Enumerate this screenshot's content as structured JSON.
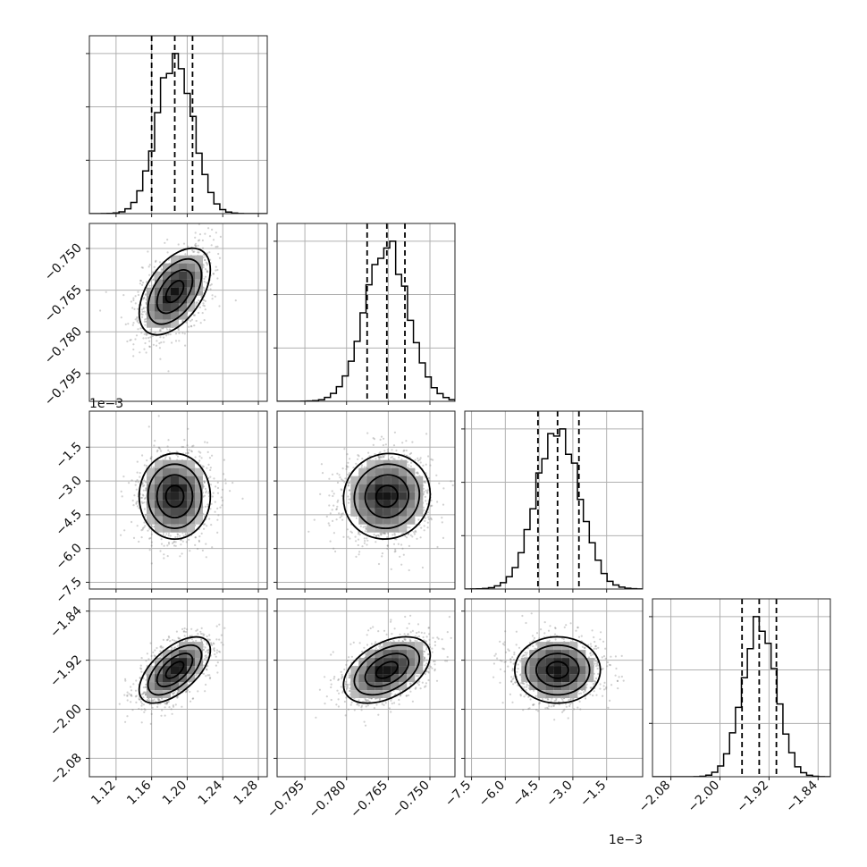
{
  "chart_data": {
    "type": "corner",
    "n_params": 4,
    "params": [
      {
        "mean": 1.186,
        "sigma": 0.02,
        "range": [
          1.09,
          1.29
        ],
        "ticks": [
          1.12,
          1.16,
          1.2,
          1.24,
          1.28
        ],
        "tick_labels": [
          "1.12",
          "1.16",
          "1.20",
          "1.24",
          "1.28"
        ],
        "quantiles": [
          1.16,
          1.186,
          1.206
        ],
        "bins": 30,
        "scale_label": ""
      },
      {
        "mean": -0.7655,
        "sigma": 0.0078,
        "range": [
          -0.805,
          -0.741
        ],
        "ticks": [
          -0.795,
          -0.78,
          -0.765,
          -0.75
        ],
        "tick_labels": [
          "−0.795",
          "−0.780",
          "−0.765",
          "−0.750"
        ],
        "quantiles": [
          -0.7726,
          -0.7655,
          -0.759
        ],
        "bins": 30,
        "scale_label": ""
      },
      {
        "mean": -3.68,
        "sigma": 0.95,
        "range": [
          -7.8,
          0.1
        ],
        "ticks": [
          -7.5,
          -6.0,
          -4.5,
          -3.0,
          -1.5
        ],
        "tick_labels": [
          "−7.5",
          "−6.0",
          "−4.5",
          "−3.0",
          "−1.5"
        ],
        "quantiles": [
          -4.55,
          -3.68,
          -2.73
        ],
        "bins": 30,
        "scale_label": "1e−3"
      },
      {
        "mean": -1.936,
        "sigma": 0.027,
        "range": [
          -2.11,
          -1.82
        ],
        "ticks": [
          -2.08,
          -2.0,
          -1.92,
          -1.84
        ],
        "tick_labels": [
          "−2.08",
          "−2.00",
          "−1.92",
          "−1.84"
        ],
        "quantiles": [
          -1.964,
          -1.936,
          -1.908
        ],
        "bins": 30,
        "scale_label": ""
      }
    ],
    "correlations": {
      "1-0": 0.5,
      "2-0": 0.0,
      "2-1": 0.05,
      "3-0": 0.6,
      "3-1": 0.45,
      "3-2": 0.0
    },
    "axis_labels": {
      "x": [
        "",
        "",
        "",
        ""
      ],
      "y": [
        "",
        "",
        "",
        ""
      ]
    },
    "grid": true
  }
}
